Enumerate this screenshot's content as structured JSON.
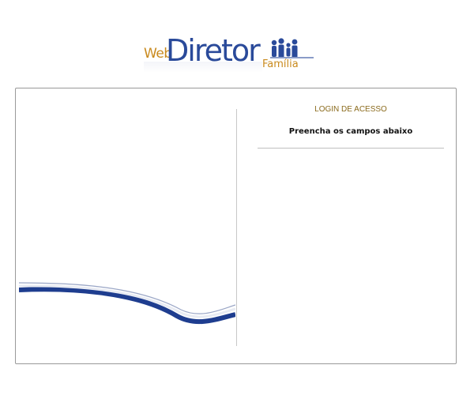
{
  "logo": {
    "web": "Web",
    "diretor": "Diretor",
    "familia": "Família",
    "brand_blue": "#2a4a9a",
    "brand_gold": "#c98a1e"
  },
  "login": {
    "title": "LOGIN DE ACESSO",
    "instructions": "Preencha os campos abaixo"
  },
  "colors": {
    "swoosh_blue": "#1e3d8f",
    "title_gold": "#8a6a1c"
  }
}
